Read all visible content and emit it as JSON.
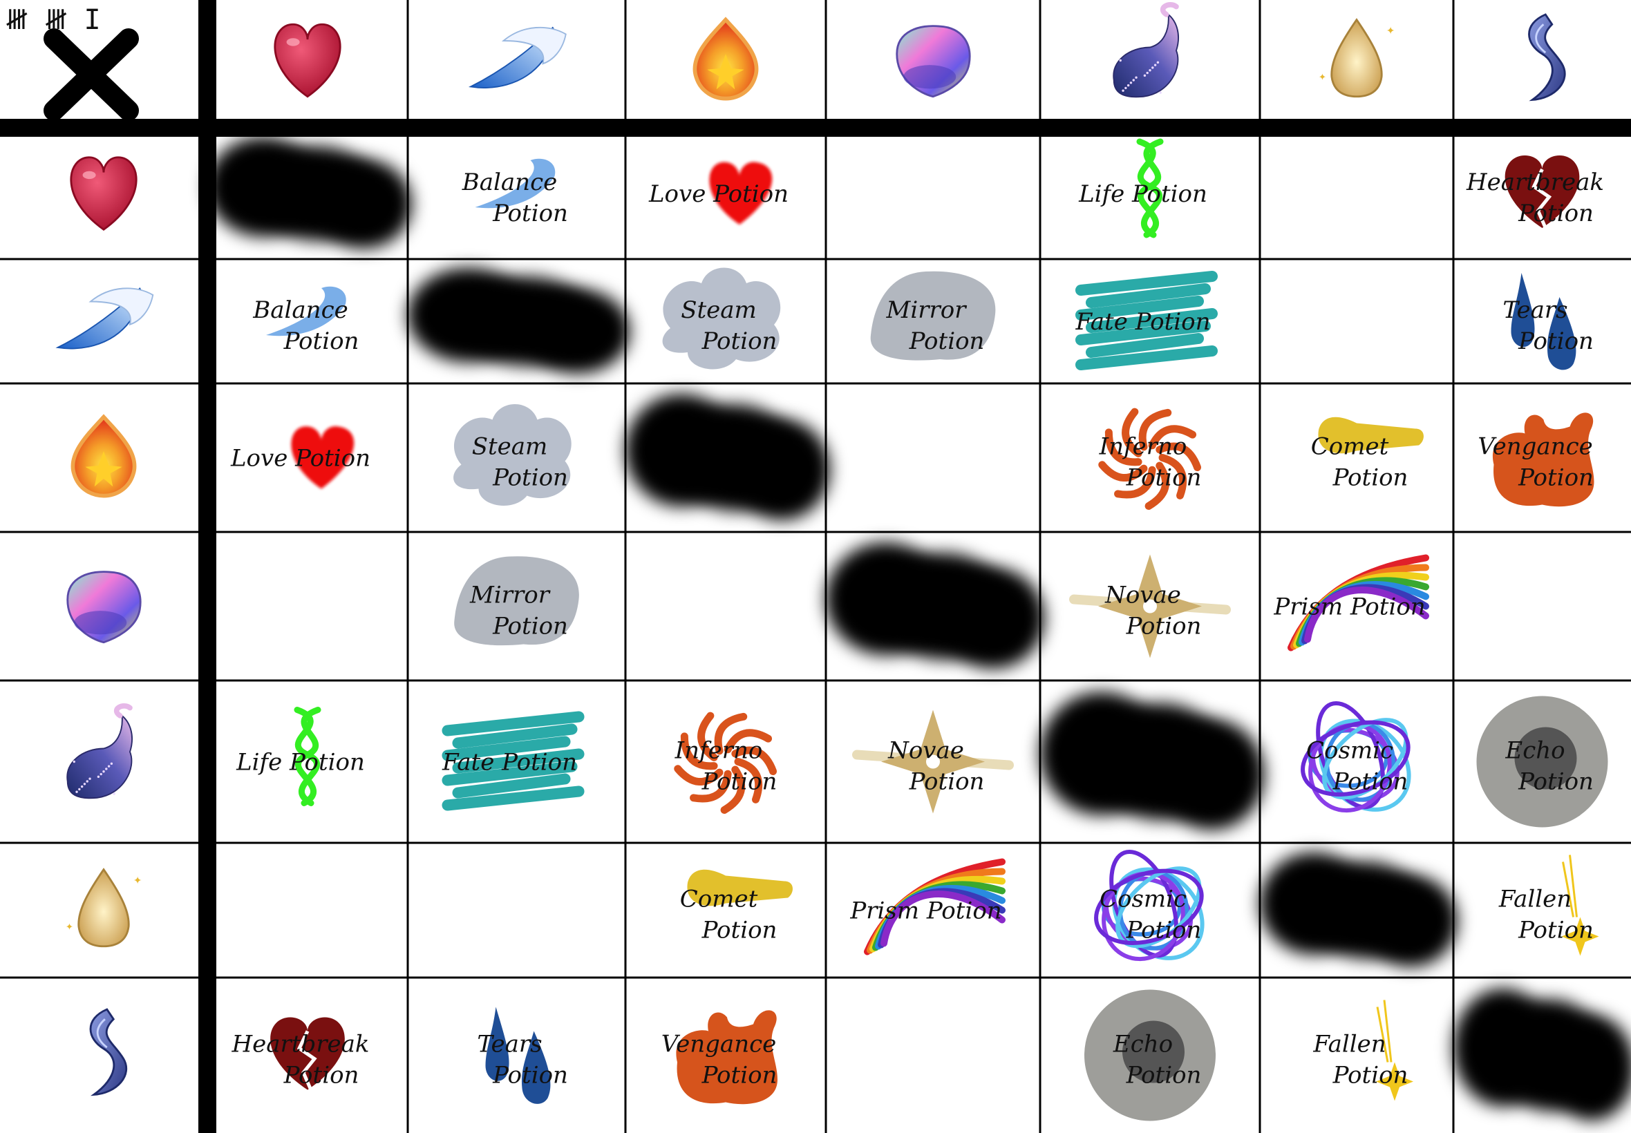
{
  "tally": "𝍸 𝍸 I",
  "corner_icon": "x-mark-icon",
  "ingredients": [
    {
      "id": "heart",
      "icon": "heart-icon",
      "color": "#c8243c"
    },
    {
      "id": "water",
      "icon": "water-wave-icon",
      "color": "#2f7fd8"
    },
    {
      "id": "fire",
      "icon": "flame-icon",
      "color": "#e84a14"
    },
    {
      "id": "prism",
      "icon": "rainbow-orb-icon",
      "color": "#b46ee0"
    },
    {
      "id": "cosmos",
      "icon": "galaxy-tail-icon",
      "color": "#3a3f8e"
    },
    {
      "id": "light",
      "icon": "golden-drop-icon",
      "color": "#e6c27a"
    },
    {
      "id": "wisp",
      "icon": "blue-wisp-icon",
      "color": "#4a5aa8"
    }
  ],
  "potions": {
    "balance": {
      "line1": "Balance",
      "line2": "Potion",
      "icon": "wave-icon",
      "color": "#7aaee8"
    },
    "love": {
      "line1": "Love Potion",
      "line2": "",
      "icon": "red-heart-icon",
      "color": "#ee1111"
    },
    "life": {
      "line1": "Life Potion",
      "line2": "",
      "icon": "green-helix-icon",
      "color": "#33ee22"
    },
    "heartbreak": {
      "line1": "Heartbreak",
      "line2": "Potion",
      "icon": "broken-heart-icon",
      "color": "#7a1010"
    },
    "steam": {
      "line1": "Steam",
      "line2": "Potion",
      "icon": "steam-cloud-icon",
      "color": "#b8bfcc"
    },
    "mirror": {
      "line1": "Mirror",
      "line2": "Potion",
      "icon": "mirror-blob-icon",
      "color": "#b2b7bf"
    },
    "fate": {
      "line1": "Fate Potion",
      "line2": "",
      "icon": "teal-scribble-icon",
      "color": "#2aaaa8"
    },
    "tears": {
      "line1": "Tears",
      "line2": "Potion",
      "icon": "teardrops-icon",
      "color": "#1f4e96"
    },
    "inferno": {
      "line1": "Inferno",
      "line2": "Potion",
      "icon": "fire-swirl-icon",
      "color": "#d9531c"
    },
    "comet": {
      "line1": "Comet",
      "line2": "Potion",
      "icon": "comet-streak-icon",
      "color": "#e2c02c"
    },
    "vengance": {
      "line1": "Vengance",
      "line2": "Potion",
      "icon": "splat-blob-icon",
      "color": "#d6541c"
    },
    "novae": {
      "line1": "Novae",
      "line2": "Potion",
      "icon": "star-flash-icon",
      "color": "#cdb070"
    },
    "prism": {
      "line1": "Prism Potion",
      "line2": "",
      "icon": "rainbow-arc-icon",
      "color": "#e0202a"
    },
    "cosmic": {
      "line1": "Cosmic",
      "line2": "Potion",
      "icon": "cosmic-scribble-icon",
      "color": "#8a3ee8"
    },
    "echo": {
      "line1": "Echo",
      "line2": "Potion",
      "icon": "echo-rings-icon",
      "color": "#9e9e9a"
    },
    "fallen": {
      "line1": "Fallen",
      "line2": "Potion",
      "icon": "falling-star-icon",
      "color": "#f0c61c"
    }
  },
  "matrix": [
    [
      "X",
      "balance",
      "love",
      "",
      "life",
      "",
      "heartbreak"
    ],
    [
      "balance",
      "X",
      "steam",
      "mirror",
      "fate",
      "",
      "tears"
    ],
    [
      "love",
      "steam",
      "X",
      "",
      "inferno",
      "comet",
      "vengance"
    ],
    [
      "",
      "mirror",
      "",
      "X",
      "novae",
      "prism",
      ""
    ],
    [
      "life",
      "fate",
      "inferno",
      "novae",
      "X",
      "cosmic",
      "echo"
    ],
    [
      "",
      "",
      "comet",
      "prism",
      "cosmic",
      "X",
      "fallen"
    ],
    [
      "heartbreak",
      "tears",
      "vengance",
      "",
      "echo",
      "fallen",
      "X"
    ]
  ]
}
